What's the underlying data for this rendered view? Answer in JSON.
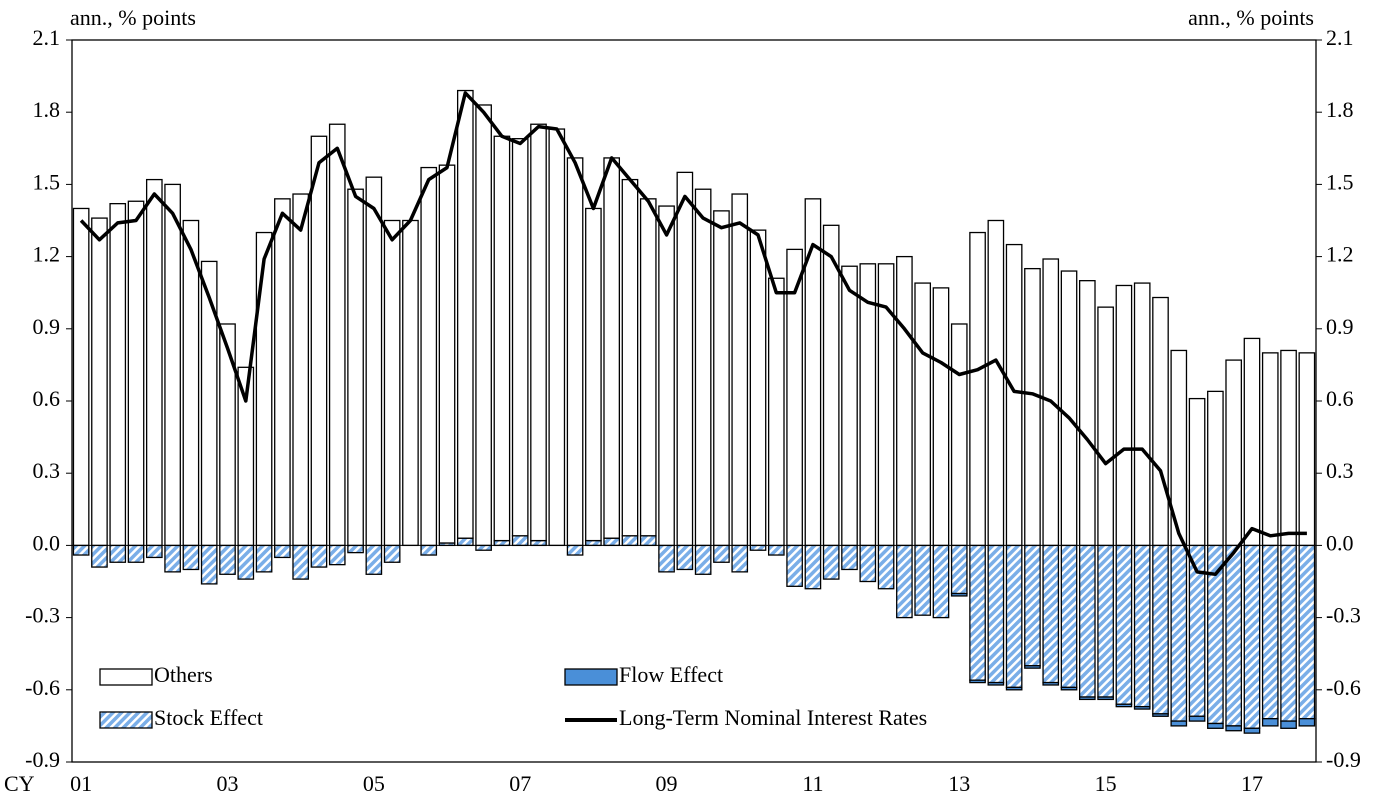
{
  "chart_data": {
    "type": "bar",
    "y_axis_label": "ann., % points",
    "y2_axis_label": "ann., % points",
    "x_axis_label": "CY",
    "categories": [
      "01",
      null,
      null,
      null,
      null,
      null,
      null,
      null,
      "03",
      null,
      null,
      null,
      null,
      null,
      null,
      null,
      "05",
      null,
      null,
      null,
      null,
      null,
      null,
      null,
      "07",
      null,
      null,
      null,
      null,
      null,
      null,
      null,
      "09",
      null,
      null,
      null,
      null,
      null,
      null,
      null,
      "11",
      null,
      null,
      null,
      null,
      null,
      null,
      null,
      "13",
      null,
      null,
      null,
      null,
      null,
      null,
      null,
      "15",
      null,
      null,
      null,
      null,
      null,
      null,
      null,
      "17",
      null,
      null,
      null
    ],
    "series": [
      {
        "name": "Others",
        "type": "bar",
        "color": "#ffffff",
        "values": [
          1.4,
          1.36,
          1.42,
          1.43,
          1.52,
          1.5,
          1.35,
          1.18,
          0.92,
          0.74,
          1.3,
          1.44,
          1.46,
          1.7,
          1.75,
          1.48,
          1.53,
          1.35,
          1.35,
          1.57,
          1.57,
          1.86,
          1.83,
          1.68,
          1.65,
          1.73,
          1.73,
          1.61,
          1.38,
          1.58,
          1.48,
          1.4,
          1.41,
          1.55,
          1.48,
          1.39,
          1.46,
          1.31,
          1.11,
          1.23,
          1.44,
          1.33,
          1.16,
          1.17,
          1.17,
          1.2,
          1.09,
          1.07,
          0.92,
          1.3,
          1.35,
          1.25,
          1.15,
          1.19,
          1.14,
          1.1,
          0.99,
          1.08,
          1.09,
          1.03,
          0.81,
          0.61,
          0.64,
          0.77,
          0.86,
          0.8,
          0.81,
          0.8
        ]
      },
      {
        "name": "Flow Effect",
        "type": "bar",
        "color": "#4a8fd8",
        "values": [
          0,
          0,
          0,
          0,
          0,
          0,
          0,
          0,
          0,
          0,
          0,
          0,
          0,
          0,
          0,
          0,
          0,
          0,
          0,
          0,
          0,
          0,
          0,
          0,
          0,
          0,
          0,
          0,
          0,
          0,
          0,
          0,
          0,
          0,
          0,
          0,
          0,
          0,
          0,
          0,
          0,
          0,
          0,
          0,
          0,
          0,
          0,
          0,
          -0.01,
          -0.01,
          -0.01,
          -0.01,
          -0.01,
          -0.01,
          -0.01,
          -0.01,
          -0.01,
          -0.01,
          -0.01,
          -0.01,
          -0.02,
          -0.02,
          -0.02,
          -0.02,
          -0.02,
          -0.03,
          -0.03,
          -0.03
        ]
      },
      {
        "name": "Stock Effect",
        "type": "bar",
        "color": "#7aaee8",
        "hatch": true,
        "values": [
          -0.04,
          -0.09,
          -0.07,
          -0.07,
          -0.05,
          -0.11,
          -0.1,
          -0.16,
          -0.12,
          -0.14,
          -0.11,
          -0.05,
          -0.14,
          -0.09,
          -0.08,
          -0.03,
          -0.12,
          -0.07,
          0.0,
          -0.04,
          0.01,
          0.03,
          -0.02,
          0.02,
          0.04,
          0.02,
          0.0,
          -0.04,
          0.02,
          0.03,
          0.04,
          0.04,
          -0.11,
          -0.1,
          -0.12,
          -0.07,
          -0.11,
          -0.02,
          -0.04,
          -0.17,
          -0.18,
          -0.14,
          -0.1,
          -0.15,
          -0.18,
          -0.3,
          -0.29,
          -0.3,
          -0.2,
          -0.56,
          -0.57,
          -0.59,
          -0.5,
          -0.57,
          -0.59,
          -0.63,
          -0.63,
          -0.66,
          -0.67,
          -0.7,
          -0.73,
          -0.71,
          -0.74,
          -0.75,
          -0.76,
          -0.72,
          -0.73,
          -0.72
        ]
      },
      {
        "name": "Long-Term Nominal Interest Rates",
        "type": "line",
        "color": "#000000",
        "values": [
          1.35,
          1.27,
          1.34,
          1.35,
          1.46,
          1.38,
          1.23,
          1.03,
          0.82,
          0.6,
          1.19,
          1.38,
          1.31,
          1.59,
          1.65,
          1.45,
          1.4,
          1.27,
          1.35,
          1.52,
          1.57,
          1.88,
          1.8,
          1.7,
          1.67,
          1.74,
          1.73,
          1.59,
          1.4,
          1.61,
          1.52,
          1.43,
          1.29,
          1.45,
          1.36,
          1.32,
          1.34,
          1.29,
          1.05,
          1.05,
          1.25,
          1.2,
          1.06,
          1.01,
          0.99,
          0.9,
          0.8,
          0.76,
          0.71,
          0.73,
          0.77,
          0.64,
          0.63,
          0.6,
          0.53,
          0.44,
          0.34,
          0.4,
          0.4,
          0.31,
          0.05,
          -0.11,
          -0.12,
          -0.03,
          0.07,
          0.04,
          0.05,
          0.05
        ]
      }
    ],
    "ylim": [
      -0.9,
      2.1
    ],
    "yticks": [
      {
        "value": -0.9,
        "label": "-0.9"
      },
      {
        "value": -0.6,
        "label": "-0.6"
      },
      {
        "value": -0.3,
        "label": "-0.3"
      },
      {
        "value": 0,
        "label": "0.0"
      },
      {
        "value": 0.3,
        "label": "0.3"
      },
      {
        "value": 0.6,
        "label": "0.6"
      },
      {
        "value": 0.9,
        "label": "0.9"
      },
      {
        "value": 1.2,
        "label": "1.2"
      },
      {
        "value": 1.5,
        "label": "1.5"
      },
      {
        "value": 1.8,
        "label": "1.8"
      },
      {
        "value": 2.1,
        "label": "2.1"
      }
    ],
    "y2lim": [
      -0.9,
      2.1
    ],
    "y2ticks": [
      {
        "value": -0.9,
        "label": "-0.9"
      },
      {
        "value": -0.6,
        "label": "-0.6"
      },
      {
        "value": -0.3,
        "label": "-0.3"
      },
      {
        "value": 0,
        "label": "0.0"
      },
      {
        "value": 0.3,
        "label": "0.3"
      },
      {
        "value": 0.6,
        "label": "0.6"
      },
      {
        "value": 0.9,
        "label": "0.9"
      },
      {
        "value": 1.2,
        "label": "1.2"
      },
      {
        "value": 1.5,
        "label": "1.5"
      },
      {
        "value": 1.8,
        "label": "1.8"
      },
      {
        "value": 2.1,
        "label": "2.1"
      }
    ],
    "grid": false,
    "legend": "lower left"
  }
}
